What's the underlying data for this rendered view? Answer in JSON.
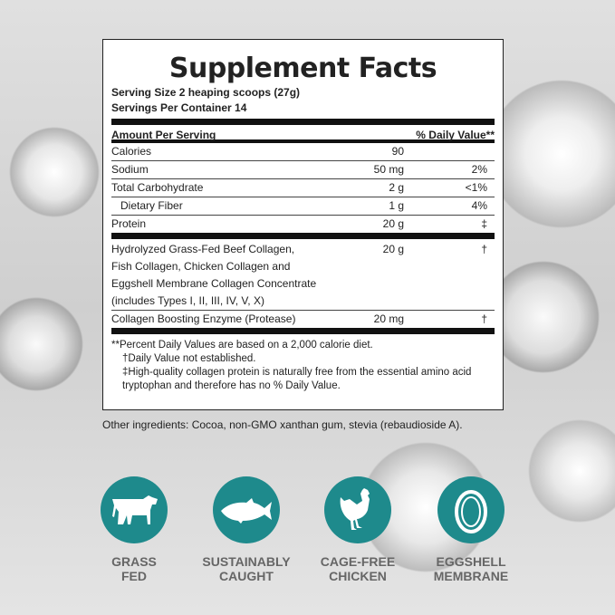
{
  "title": "Supplement Facts",
  "serving_size": "Serving Size 2 heaping scoops (27g)",
  "servings_per_container": "Servings Per Container 14",
  "header": {
    "amount": "Amount Per Serving",
    "dv": "% Daily Value**"
  },
  "rows": [
    {
      "name": "Calories",
      "amount": "90",
      "dv": ""
    },
    {
      "name": "Sodium",
      "amount": "50 mg",
      "dv": "2%"
    },
    {
      "name": "Total Carbohydrate",
      "amount": "2 g",
      "dv": "<1%"
    },
    {
      "name": "Dietary Fiber",
      "amount": "1 g",
      "dv": "4%"
    },
    {
      "name": "Protein",
      "amount": "20 g",
      "dv": "‡"
    }
  ],
  "blend": {
    "lines": [
      "Hydrolyzed Grass-Fed Beef Collagen,",
      "Fish Collagen, Chicken Collagen and",
      "Eggshell Membrane Collagen Concentrate",
      "(includes Types I, II, III, IV, V, X)"
    ],
    "amount": "20 g",
    "dv": "†"
  },
  "enzyme": {
    "name": "Collagen Boosting Enzyme (Protease)",
    "amount": "20 mg",
    "dv": "†"
  },
  "footnotes": [
    "**Percent Daily Values are based on a 2,000 calorie diet.",
    "†Daily Value not established.",
    "‡High-quality collagen protein is naturally free from the essential amino acid",
    "tryptophan and therefore has no % Daily Value."
  ],
  "other_ingredients": "Other ingredients: Cocoa, non-GMO xanthan gum, stevia (rebaudioside A).",
  "badges": [
    {
      "icon": "cow-icon",
      "line1": "GRASS",
      "line2": "FED"
    },
    {
      "icon": "fish-icon",
      "line1": "SUSTAINABLY",
      "line2": "CAUGHT"
    },
    {
      "icon": "chicken-icon",
      "line1": "CAGE-FREE",
      "line2": "CHICKEN"
    },
    {
      "icon": "egg-icon",
      "line1": "EGGSHELL",
      "line2": "MEMBRANE"
    }
  ],
  "colors": {
    "badge": "#1e8a8c",
    "label": "#666666"
  }
}
